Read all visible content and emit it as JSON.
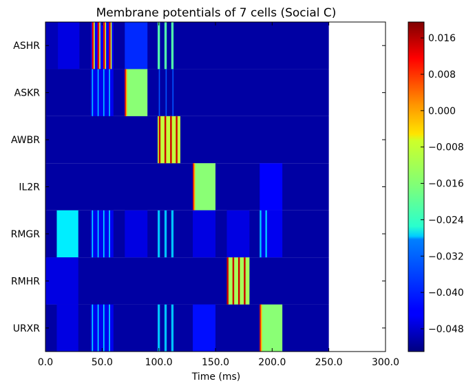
{
  "chart_data": {
    "type": "heatmap",
    "title": "Membrane potentials of 7 cells (Social C)",
    "xlabel": "Time (ms)",
    "ylabel": "",
    "xlim": [
      0,
      300
    ],
    "x_ticks": [
      "0.0",
      "50.0",
      "100.0",
      "150.0",
      "200.0",
      "250.0",
      "300.0"
    ],
    "data_end_ms": 250,
    "cells": [
      "ASHR",
      "ASKR",
      "AWBR",
      "IL2R",
      "RMGR",
      "RMHR",
      "URXR"
    ],
    "colorbar": {
      "min": -0.053,
      "max": 0.0195,
      "colormap": "jet",
      "ticks": [
        "0.016",
        "0.008",
        "0.000",
        "−0.008",
        "−0.016",
        "−0.024",
        "−0.032",
        "−0.040",
        "−0.048"
      ]
    },
    "baseline_v": -0.0505,
    "segments": [
      {
        "cell": "ASHR",
        "t0": 0,
        "t1": 11,
        "v": -0.049
      },
      {
        "cell": "ASHR",
        "t0": 11,
        "t1": 30,
        "v": -0.046
      },
      {
        "cell": "ASHR",
        "t0": 40,
        "t1": 60,
        "v": -0.044
      },
      {
        "cell": "ASHR",
        "t0": 41,
        "t1": 42.5,
        "v": 0.012
      },
      {
        "cell": "ASHR",
        "t0": 42.5,
        "t1": 43.5,
        "v": -0.012
      },
      {
        "cell": "ASHR",
        "t0": 46,
        "t1": 47.5,
        "v": 0.012
      },
      {
        "cell": "ASHR",
        "t0": 47.5,
        "t1": 48.5,
        "v": -0.012
      },
      {
        "cell": "ASHR",
        "t0": 51,
        "t1": 52.5,
        "v": 0.012
      },
      {
        "cell": "ASHR",
        "t0": 52.5,
        "t1": 53.5,
        "v": -0.012
      },
      {
        "cell": "ASHR",
        "t0": 56,
        "t1": 57.5,
        "v": 0.012
      },
      {
        "cell": "ASHR",
        "t0": 57.5,
        "t1": 58.5,
        "v": -0.012
      },
      {
        "cell": "ASHR",
        "t0": 70,
        "t1": 90,
        "v": -0.041
      },
      {
        "cell": "ASHR",
        "t0": 99,
        "t1": 101,
        "v": -0.02
      },
      {
        "cell": "ASHR",
        "t0": 105,
        "t1": 107,
        "v": -0.02
      },
      {
        "cell": "ASHR",
        "t0": 111,
        "t1": 113,
        "v": -0.02
      },
      {
        "cell": "ASKR",
        "t0": 40,
        "t1": 60,
        "v": -0.045
      },
      {
        "cell": "ASKR",
        "t0": 41,
        "t1": 42,
        "v": -0.03
      },
      {
        "cell": "ASKR",
        "t0": 46,
        "t1": 47,
        "v": -0.03
      },
      {
        "cell": "ASKR",
        "t0": 51,
        "t1": 52,
        "v": -0.03
      },
      {
        "cell": "ASKR",
        "t0": 56,
        "t1": 57,
        "v": -0.03
      },
      {
        "cell": "ASKR",
        "t0": 70,
        "t1": 90,
        "v": -0.016
      },
      {
        "cell": "ASKR",
        "t0": 70,
        "t1": 71,
        "v": 0.012
      },
      {
        "cell": "ASKR",
        "t0": 71,
        "t1": 72,
        "v": -0.002
      },
      {
        "cell": "ASKR",
        "t0": 100,
        "t1": 101,
        "v": -0.038
      },
      {
        "cell": "ASKR",
        "t0": 106,
        "t1": 107,
        "v": -0.038
      },
      {
        "cell": "ASKR",
        "t0": 112,
        "t1": 113,
        "v": -0.038
      },
      {
        "cell": "AWBR",
        "t0": 99,
        "t1": 119,
        "v": -0.012
      },
      {
        "cell": "AWBR",
        "t0": 100,
        "t1": 101.5,
        "v": 0.014
      },
      {
        "cell": "AWBR",
        "t0": 105,
        "t1": 106.5,
        "v": 0.014
      },
      {
        "cell": "AWBR",
        "t0": 110,
        "t1": 111.5,
        "v": 0.014
      },
      {
        "cell": "AWBR",
        "t0": 115,
        "t1": 116.5,
        "v": 0.014
      },
      {
        "cell": "IL2R",
        "t0": 130,
        "t1": 150,
        "v": -0.016
      },
      {
        "cell": "IL2R",
        "t0": 130,
        "t1": 131,
        "v": 0.012
      },
      {
        "cell": "IL2R",
        "t0": 131,
        "t1": 132,
        "v": -0.002
      },
      {
        "cell": "IL2R",
        "t0": 189,
        "t1": 209,
        "v": -0.044
      },
      {
        "cell": "RMGR",
        "t0": 10,
        "t1": 29,
        "v": -0.027
      },
      {
        "cell": "RMGR",
        "t0": 40,
        "t1": 60,
        "v": -0.045
      },
      {
        "cell": "RMGR",
        "t0": 41,
        "t1": 42,
        "v": -0.028
      },
      {
        "cell": "RMGR",
        "t0": 46,
        "t1": 47,
        "v": -0.028
      },
      {
        "cell": "RMGR",
        "t0": 51,
        "t1": 52,
        "v": -0.028
      },
      {
        "cell": "RMGR",
        "t0": 56,
        "t1": 57,
        "v": -0.028
      },
      {
        "cell": "RMGR",
        "t0": 70,
        "t1": 90,
        "v": -0.046
      },
      {
        "cell": "RMGR",
        "t0": 99,
        "t1": 101,
        "v": -0.03
      },
      {
        "cell": "RMGR",
        "t0": 105,
        "t1": 107,
        "v": -0.03
      },
      {
        "cell": "RMGR",
        "t0": 111,
        "t1": 113,
        "v": -0.03
      },
      {
        "cell": "RMGR",
        "t0": 130,
        "t1": 150,
        "v": -0.046
      },
      {
        "cell": "RMGR",
        "t0": 160,
        "t1": 180,
        "v": -0.046
      },
      {
        "cell": "RMGR",
        "t0": 189,
        "t1": 209,
        "v": -0.045
      },
      {
        "cell": "RMGR",
        "t0": 189,
        "t1": 190.5,
        "v": -0.03
      },
      {
        "cell": "RMGR",
        "t0": 194,
        "t1": 195.5,
        "v": -0.03
      },
      {
        "cell": "RMHR",
        "t0": 0,
        "t1": 29,
        "v": -0.046
      },
      {
        "cell": "RMHR",
        "t0": 160,
        "t1": 180,
        "v": -0.014
      },
      {
        "cell": "RMHR",
        "t0": 160,
        "t1": 161.5,
        "v": 0.014
      },
      {
        "cell": "RMHR",
        "t0": 165,
        "t1": 166.5,
        "v": 0.014
      },
      {
        "cell": "RMHR",
        "t0": 170,
        "t1": 171.5,
        "v": 0.014
      },
      {
        "cell": "RMHR",
        "t0": 175,
        "t1": 176.5,
        "v": 0.014
      },
      {
        "cell": "URXR",
        "t0": 10,
        "t1": 29,
        "v": -0.046
      },
      {
        "cell": "URXR",
        "t0": 40,
        "t1": 60,
        "v": -0.045
      },
      {
        "cell": "URXR",
        "t0": 41,
        "t1": 42,
        "v": -0.028
      },
      {
        "cell": "URXR",
        "t0": 46,
        "t1": 47,
        "v": -0.028
      },
      {
        "cell": "URXR",
        "t0": 51,
        "t1": 52,
        "v": -0.028
      },
      {
        "cell": "URXR",
        "t0": 56,
        "t1": 57,
        "v": -0.028
      },
      {
        "cell": "URXR",
        "t0": 99,
        "t1": 101,
        "v": -0.03
      },
      {
        "cell": "URXR",
        "t0": 105,
        "t1": 107,
        "v": -0.03
      },
      {
        "cell": "URXR",
        "t0": 111,
        "t1": 113,
        "v": -0.03
      },
      {
        "cell": "URXR",
        "t0": 130,
        "t1": 150,
        "v": -0.043
      },
      {
        "cell": "URXR",
        "t0": 189,
        "t1": 209,
        "v": -0.016
      },
      {
        "cell": "URXR",
        "t0": 189,
        "t1": 190,
        "v": 0.012
      },
      {
        "cell": "URXR",
        "t0": 190,
        "t1": 191,
        "v": -0.002
      }
    ]
  }
}
